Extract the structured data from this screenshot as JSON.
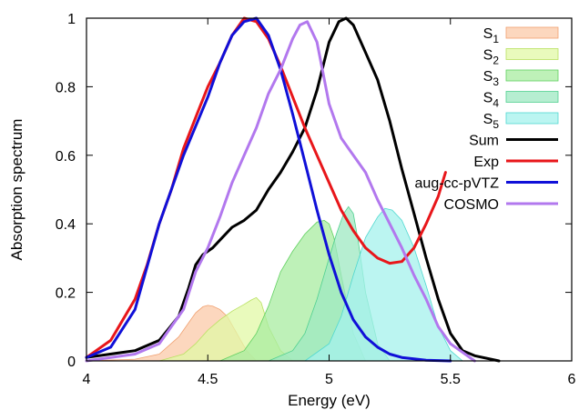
{
  "chart_data": {
    "type": "area",
    "title": "",
    "xlabel": "Energy (eV)",
    "ylabel": "Absorption spectrum",
    "xlim": [
      4,
      6
    ],
    "ylim": [
      0,
      1
    ],
    "xticks": [
      4,
      4.5,
      5,
      5.5,
      6
    ],
    "yticks": [
      0,
      0.2,
      0.4,
      0.6,
      0.8,
      1
    ],
    "xtick_labels": [
      "4",
      "4.5",
      "5",
      "5.5",
      "6"
    ],
    "ytick_labels": [
      "0",
      "0.2",
      "0.4",
      "0.6",
      "0.8",
      "1"
    ],
    "grid": false,
    "legend_position": "top-right",
    "series": [
      {
        "name_main": "S",
        "name_sub": "1",
        "kind": "area",
        "fill": "#fbc9a8",
        "stroke": "#f0a070",
        "x": [
          4.0,
          4.2,
          4.3,
          4.38,
          4.42,
          4.45,
          4.48,
          4.5,
          4.52,
          4.55,
          4.58,
          4.62,
          4.66,
          4.7
        ],
        "y": [
          0.0,
          0.005,
          0.02,
          0.07,
          0.11,
          0.14,
          0.158,
          0.162,
          0.16,
          0.15,
          0.13,
          0.08,
          0.03,
          0.0
        ]
      },
      {
        "name_main": "S",
        "name_sub": "2",
        "kind": "area",
        "fill": "#e2f8a6",
        "stroke": "#b8e060",
        "x": [
          4.3,
          4.4,
          4.45,
          4.5,
          4.55,
          4.6,
          4.65,
          4.68,
          4.7,
          4.72,
          4.75,
          4.8,
          4.85
        ],
        "y": [
          0.0,
          0.02,
          0.05,
          0.09,
          0.12,
          0.145,
          0.165,
          0.178,
          0.185,
          0.17,
          0.1,
          0.03,
          0.0
        ]
      },
      {
        "name_main": "S",
        "name_sub": "3",
        "kind": "area",
        "fill": "#a8eca0",
        "stroke": "#60d060",
        "x": [
          4.55,
          4.65,
          4.7,
          4.75,
          4.8,
          4.85,
          4.9,
          4.95,
          4.98,
          5.0,
          5.02,
          5.05,
          5.1,
          5.15
        ],
        "y": [
          0.0,
          0.03,
          0.08,
          0.16,
          0.26,
          0.32,
          0.37,
          0.405,
          0.41,
          0.4,
          0.36,
          0.25,
          0.08,
          0.0
        ]
      },
      {
        "name_main": "S",
        "name_sub": "4",
        "kind": "area",
        "fill": "#9ee8c2",
        "stroke": "#50d090",
        "x": [
          4.75,
          4.85,
          4.9,
          4.95,
          5.0,
          5.03,
          5.06,
          5.08,
          5.1,
          5.12,
          5.15,
          5.2,
          5.25
        ],
        "y": [
          0.0,
          0.03,
          0.08,
          0.18,
          0.3,
          0.37,
          0.43,
          0.45,
          0.43,
          0.35,
          0.2,
          0.05,
          0.0
        ]
      },
      {
        "name_main": "S",
        "name_sub": "5",
        "kind": "area",
        "fill": "#a4f2ec",
        "stroke": "#50d8d0",
        "x": [
          4.9,
          5.0,
          5.05,
          5.1,
          5.15,
          5.2,
          5.23,
          5.26,
          5.3,
          5.35,
          5.4,
          5.45,
          5.5,
          5.55
        ],
        "y": [
          0.0,
          0.05,
          0.13,
          0.25,
          0.36,
          0.42,
          0.445,
          0.44,
          0.41,
          0.33,
          0.22,
          0.1,
          0.03,
          0.0
        ]
      },
      {
        "name_main": "Sum",
        "name_sub": "",
        "kind": "line",
        "stroke": "#000000",
        "x": [
          4.0,
          4.2,
          4.3,
          4.38,
          4.42,
          4.45,
          4.48,
          4.52,
          4.56,
          4.6,
          4.65,
          4.7,
          4.75,
          4.8,
          4.85,
          4.9,
          4.95,
          5.0,
          5.04,
          5.07,
          5.1,
          5.15,
          5.2,
          5.25,
          5.3,
          5.35,
          5.4,
          5.45,
          5.5,
          5.55,
          5.6,
          5.7
        ],
        "y": [
          0.01,
          0.03,
          0.06,
          0.13,
          0.21,
          0.28,
          0.31,
          0.33,
          0.36,
          0.39,
          0.41,
          0.44,
          0.5,
          0.55,
          0.61,
          0.68,
          0.79,
          0.93,
          0.99,
          1.0,
          0.98,
          0.9,
          0.82,
          0.7,
          0.56,
          0.43,
          0.3,
          0.18,
          0.08,
          0.03,
          0.015,
          0.0
        ]
      },
      {
        "name_main": "Exp",
        "name_sub": "",
        "kind": "line",
        "stroke": "#e8161a",
        "x": [
          4.0,
          4.1,
          4.2,
          4.25,
          4.3,
          4.35,
          4.4,
          4.45,
          4.5,
          4.55,
          4.6,
          4.65,
          4.7,
          4.75,
          4.8,
          4.85,
          4.9,
          4.95,
          5.0,
          5.05,
          5.1,
          5.15,
          5.2,
          5.25,
          5.3,
          5.35,
          5.4,
          5.45,
          5.48
        ],
        "y": [
          0.01,
          0.06,
          0.18,
          0.28,
          0.4,
          0.5,
          0.62,
          0.71,
          0.8,
          0.87,
          0.95,
          1.0,
          0.99,
          0.94,
          0.86,
          0.77,
          0.68,
          0.6,
          0.52,
          0.44,
          0.38,
          0.33,
          0.3,
          0.285,
          0.29,
          0.33,
          0.4,
          0.48,
          0.55
        ]
      },
      {
        "name_main": "aug-cc-pVTZ",
        "name_sub": "",
        "kind": "line",
        "stroke": "#1010d8",
        "x": [
          4.0,
          4.1,
          4.2,
          4.3,
          4.4,
          4.5,
          4.55,
          4.6,
          4.65,
          4.7,
          4.75,
          4.8,
          4.85,
          4.9,
          4.95,
          5.0,
          5.05,
          5.1,
          5.15,
          5.2,
          5.25,
          5.3,
          5.4,
          5.5
        ],
        "y": [
          0.01,
          0.04,
          0.15,
          0.4,
          0.6,
          0.77,
          0.87,
          0.95,
          0.99,
          1.0,
          0.95,
          0.85,
          0.72,
          0.58,
          0.44,
          0.31,
          0.2,
          0.12,
          0.07,
          0.04,
          0.02,
          0.01,
          0.002,
          0.0
        ]
      },
      {
        "name_main": "COSMO",
        "name_sub": "",
        "kind": "line",
        "stroke": "#b278ee",
        "x": [
          4.0,
          4.2,
          4.3,
          4.4,
          4.45,
          4.5,
          4.55,
          4.6,
          4.65,
          4.7,
          4.75,
          4.8,
          4.85,
          4.88,
          4.91,
          4.95,
          5.0,
          5.05,
          5.1,
          5.15,
          5.2,
          5.25,
          5.3,
          5.35,
          5.4,
          5.45,
          5.5,
          5.6
        ],
        "y": [
          0.0,
          0.02,
          0.05,
          0.15,
          0.26,
          0.33,
          0.42,
          0.52,
          0.6,
          0.68,
          0.78,
          0.85,
          0.94,
          0.98,
          0.99,
          0.93,
          0.75,
          0.65,
          0.6,
          0.55,
          0.47,
          0.4,
          0.33,
          0.25,
          0.18,
          0.1,
          0.05,
          0.0
        ]
      }
    ]
  }
}
